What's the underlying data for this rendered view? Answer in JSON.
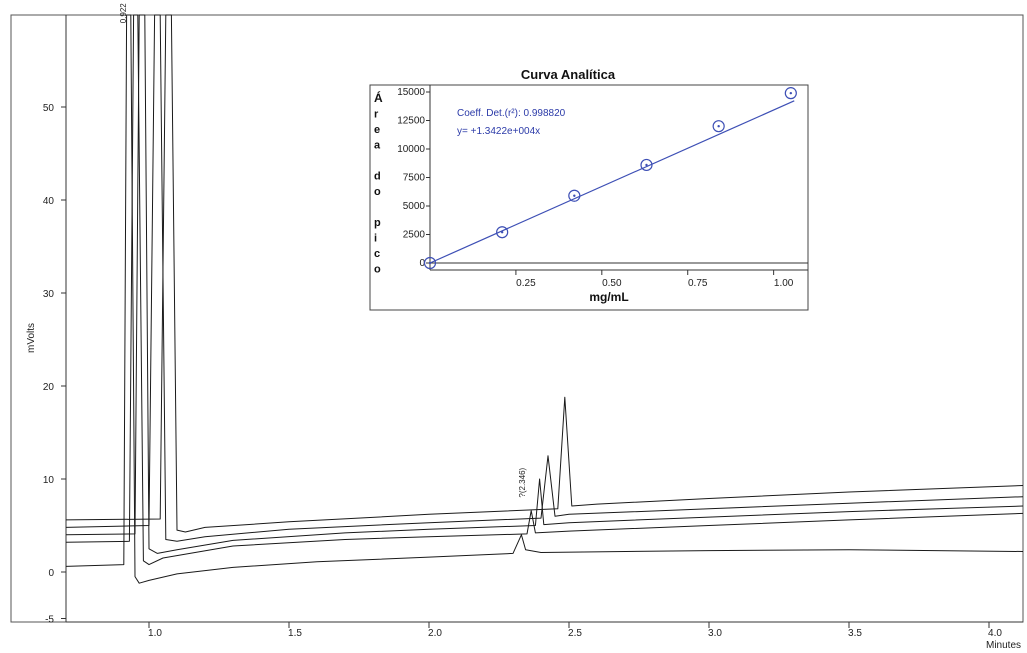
{
  "chart_data": [
    {
      "type": "line",
      "title": "",
      "xlabel": "",
      "x_unit_label": "Minutes",
      "ylabel": "mVolts",
      "xlim": [
        0.7,
        4.13
      ],
      "ylim": [
        -5,
        60
      ],
      "x_ticks": [
        1.0,
        1.5,
        2.0,
        2.5,
        3.0,
        3.5,
        4.0
      ],
      "x_tick_labels": [
        "1.0",
        "1.5",
        "2.0",
        "2.5",
        "3.0",
        "3.5",
        "4.0"
      ],
      "y_ticks": [
        -5,
        0,
        10,
        20,
        30,
        40,
        50
      ],
      "y_tick_labels": [
        "-5",
        "0",
        "10",
        "20",
        "30",
        "40",
        "50"
      ],
      "grid": false,
      "peak_labels": [
        {
          "text": "0.922",
          "x": 0.922,
          "y": 59
        },
        {
          "text": "?(2.346)",
          "x": 2.346,
          "y": 8
        }
      ],
      "series": [
        {
          "values": [
            [
              0.7,
              0.6
            ],
            [
              0.91,
              0.8
            ],
            [
              0.92,
              62
            ],
            [
              0.935,
              62
            ],
            [
              0.95,
              -0.5
            ],
            [
              0.965,
              -1.2
            ],
            [
              1.0,
              -0.9
            ],
            [
              1.1,
              -0.2
            ],
            [
              1.3,
              0.5
            ],
            [
              1.6,
              1.1
            ],
            [
              2.0,
              1.6
            ],
            [
              2.3,
              2.0
            ],
            [
              2.33,
              4.0
            ],
            [
              2.345,
              2.4
            ],
            [
              2.4,
              2.1
            ],
            [
              3.0,
              2.3
            ],
            [
              3.5,
              2.4
            ],
            [
              4.13,
              2.2
            ]
          ]
        },
        {
          "values": [
            [
              0.7,
              3.2
            ],
            [
              0.93,
              3.3
            ],
            [
              0.945,
              62
            ],
            [
              0.96,
              62
            ],
            [
              0.98,
              1.2
            ],
            [
              1.0,
              0.8
            ],
            [
              1.05,
              1.5
            ],
            [
              1.3,
              2.8
            ],
            [
              1.7,
              3.5
            ],
            [
              2.0,
              3.8
            ],
            [
              2.35,
              4.1
            ],
            [
              2.365,
              6.6
            ],
            [
              2.38,
              4.2
            ],
            [
              2.5,
              4.4
            ],
            [
              3.0,
              5.0
            ],
            [
              3.5,
              5.6
            ],
            [
              4.13,
              6.3
            ]
          ]
        },
        {
          "values": [
            [
              0.7,
              4.0
            ],
            [
              0.95,
              4.1
            ],
            [
              0.965,
              62
            ],
            [
              0.985,
              62
            ],
            [
              1.0,
              2.5
            ],
            [
              1.03,
              2.0
            ],
            [
              1.1,
              2.4
            ],
            [
              1.3,
              3.4
            ],
            [
              1.7,
              4.2
            ],
            [
              2.0,
              4.6
            ],
            [
              2.38,
              5.0
            ],
            [
              2.395,
              10.0
            ],
            [
              2.41,
              5.1
            ],
            [
              2.5,
              5.3
            ],
            [
              3.0,
              5.9
            ],
            [
              3.5,
              6.5
            ],
            [
              4.13,
              7.1
            ]
          ]
        },
        {
          "values": [
            [
              0.7,
              4.8
            ],
            [
              1.0,
              5.0
            ],
            [
              1.02,
              62
            ],
            [
              1.04,
              62
            ],
            [
              1.06,
              3.5
            ],
            [
              1.1,
              3.3
            ],
            [
              1.2,
              3.8
            ],
            [
              1.5,
              4.6
            ],
            [
              2.0,
              5.3
            ],
            [
              2.4,
              5.8
            ],
            [
              2.425,
              12.5
            ],
            [
              2.45,
              6.0
            ],
            [
              2.5,
              6.2
            ],
            [
              3.0,
              6.8
            ],
            [
              3.5,
              7.4
            ],
            [
              4.13,
              8.1
            ]
          ]
        },
        {
          "values": [
            [
              0.7,
              5.6
            ],
            [
              1.04,
              5.7
            ],
            [
              1.06,
              62
            ],
            [
              1.08,
              62
            ],
            [
              1.1,
              4.5
            ],
            [
              1.13,
              4.3
            ],
            [
              1.2,
              4.8
            ],
            [
              1.5,
              5.4
            ],
            [
              2.0,
              6.2
            ],
            [
              2.46,
              6.8
            ],
            [
              2.485,
              18.8
            ],
            [
              2.51,
              7.1
            ],
            [
              2.6,
              7.3
            ],
            [
              3.0,
              7.9
            ],
            [
              3.5,
              8.6
            ],
            [
              4.13,
              9.3
            ]
          ]
        }
      ]
    },
    {
      "type": "scatter",
      "title": "Curva Analítica",
      "xlabel": "mg/mL",
      "ylabel_letters": [
        "Á",
        "r",
        "e",
        "a",
        "",
        "d",
        "o",
        "",
        "p",
        "i",
        "c",
        "o"
      ],
      "xlim": [
        0.0,
        1.1
      ],
      "ylim": [
        -600,
        15500
      ],
      "x_ticks": [
        0.25,
        0.5,
        0.75,
        1.0
      ],
      "x_tick_labels": [
        "0.25",
        "0.50",
        "0.75",
        "1.00"
      ],
      "y_ticks": [
        0,
        2500,
        5000,
        7500,
        10000,
        12500,
        15000
      ],
      "y_tick_labels": [
        "0",
        "2500",
        "5000",
        "7500",
        "10000",
        "12500",
        "15000"
      ],
      "annotations": [
        "Coeff. Det.(r²): 0.998820",
        "y=  +1.3422e+004x"
      ],
      "fit": {
        "slope": 13422,
        "intercept": 0
      },
      "points": [
        [
          0.0,
          0
        ],
        [
          0.21,
          2700
        ],
        [
          0.42,
          5900
        ],
        [
          0.63,
          8600
        ],
        [
          0.84,
          12000
        ],
        [
          1.05,
          14900
        ]
      ],
      "colors": {
        "points": "#3d4fb5",
        "fit": "#3d4fb5",
        "annotation": "#2b3aa8"
      }
    }
  ]
}
